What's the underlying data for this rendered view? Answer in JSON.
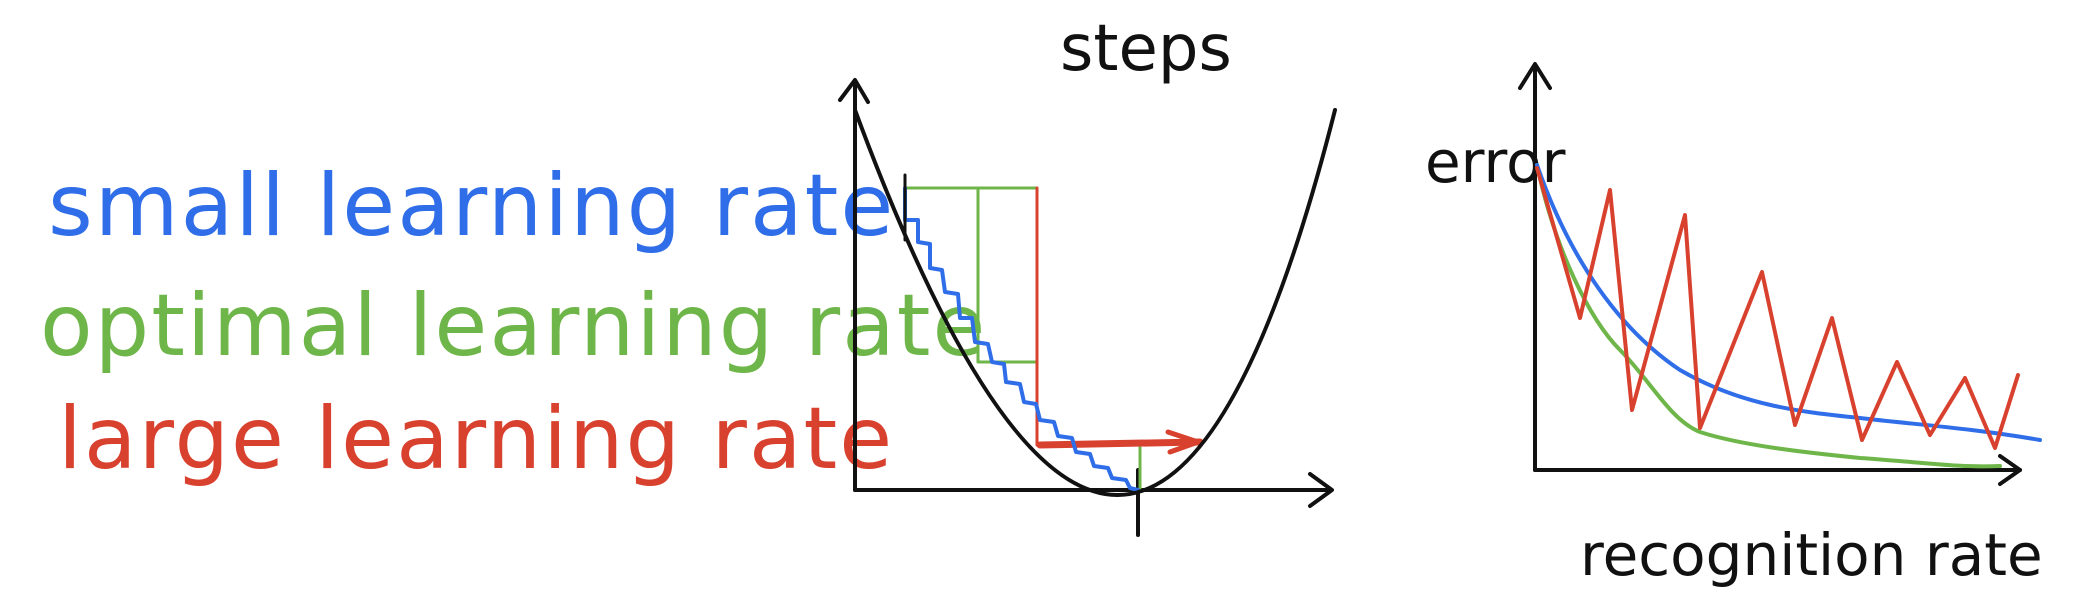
{
  "legend": {
    "small": {
      "label": "small learning rate",
      "color": "#2f6ee8"
    },
    "optimal": {
      "label": "optimal learning rate",
      "color": "#6fb64a"
    },
    "large": {
      "label": "large learning rate",
      "color": "#d9412f"
    }
  },
  "steps_diagram": {
    "title": "steps"
  },
  "error_chart": {
    "y_label": "error",
    "x_label": "recognition rate"
  },
  "colors": {
    "ink": "#111111",
    "blue": "#2f6ee8",
    "green": "#6fb64a",
    "red": "#d9412f"
  }
}
